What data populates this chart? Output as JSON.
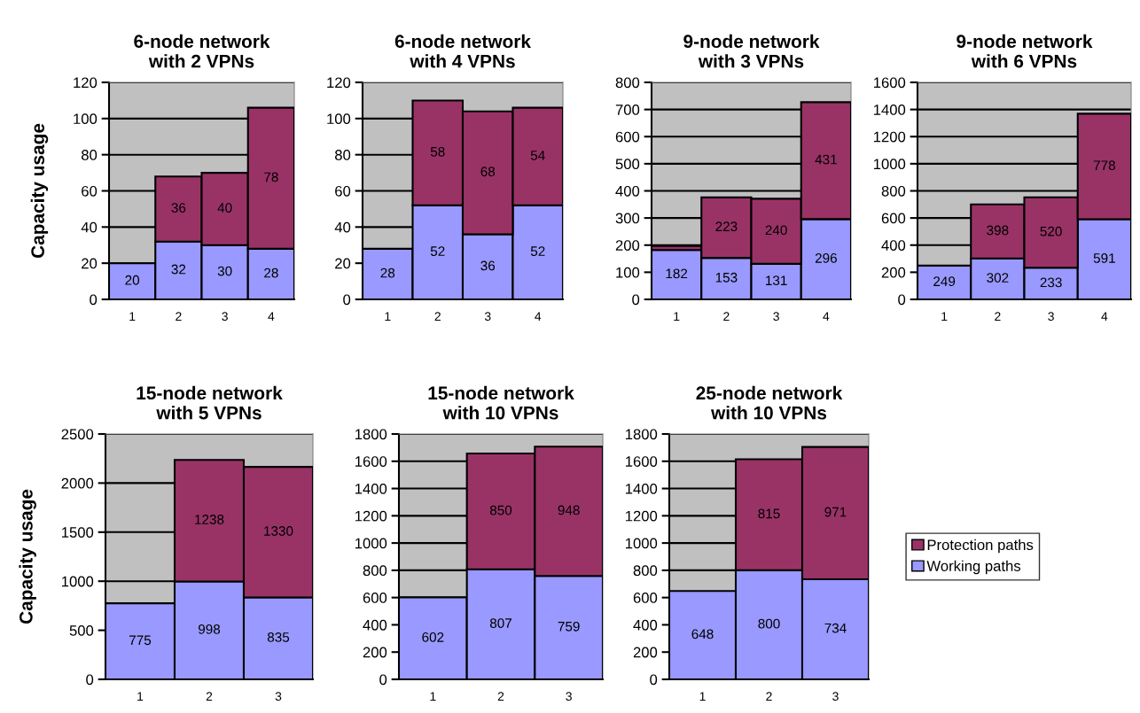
{
  "chart_data": [
    {
      "type": "bar",
      "stacked": true,
      "title": "6-node network\nwith 2 VPNs",
      "ylabel": "Capacity usage",
      "categories": [
        "1",
        "2",
        "3",
        "4"
      ],
      "ylim": [
        0,
        120
      ],
      "yticks": [
        0,
        20,
        40,
        60,
        80,
        100,
        120
      ],
      "grid": "y",
      "legend": false,
      "series": [
        {
          "color": "#9999ff",
          "values": [
            20,
            32,
            30,
            28
          ],
          "value_labels": [
            "20",
            "32",
            "30",
            "28"
          ]
        },
        {
          "color": "#993366",
          "values": [
            null,
            36,
            40,
            78
          ],
          "value_labels": [
            null,
            "36",
            "40",
            "78"
          ]
        }
      ]
    },
    {
      "type": "bar",
      "stacked": true,
      "title": "6-node network\nwith 4 VPNs",
      "categories": [
        "1",
        "2",
        "3",
        "4"
      ],
      "ylim": [
        0,
        120
      ],
      "yticks": [
        0,
        20,
        40,
        60,
        80,
        100,
        120
      ],
      "grid": "y",
      "legend": false,
      "series": [
        {
          "color": "#9999ff",
          "values": [
            28,
            52,
            36,
            52
          ],
          "value_labels": [
            "28",
            "52",
            "36",
            "52"
          ]
        },
        {
          "color": "#993366",
          "values": [
            null,
            58,
            68,
            54
          ],
          "value_labels": [
            null,
            "58",
            "68",
            "54"
          ]
        }
      ]
    },
    {
      "type": "bar",
      "stacked": true,
      "title": "9-node network\nwith 3 VPNs",
      "categories": [
        "1",
        "2",
        "3",
        "4"
      ],
      "ylim": [
        0,
        800
      ],
      "yticks": [
        0,
        100,
        200,
        300,
        400,
        500,
        600,
        700,
        800
      ],
      "grid": "y",
      "legend": false,
      "series": [
        {
          "color": "#9999ff",
          "values": [
            182,
            153,
            131,
            296
          ],
          "value_labels": [
            "182",
            "153",
            "131",
            "296"
          ]
        },
        {
          "color": "#993366",
          "values": [
            15,
            223,
            240,
            431
          ],
          "value_labels": [
            null,
            "223",
            "240",
            "431"
          ]
        }
      ]
    },
    {
      "type": "bar",
      "stacked": true,
      "title": "9-node network\nwith 6 VPNs",
      "categories": [
        "1",
        "2",
        "3",
        "4"
      ],
      "ylim": [
        0,
        1600
      ],
      "yticks": [
        0,
        200,
        400,
        600,
        800,
        1000,
        1200,
        1400,
        1600
      ],
      "grid": "y",
      "legend": false,
      "series": [
        {
          "color": "#9999ff",
          "values": [
            249,
            302,
            233,
            591
          ],
          "value_labels": [
            "249",
            "302",
            "233",
            "591"
          ]
        },
        {
          "color": "#993366",
          "values": [
            null,
            398,
            520,
            778
          ],
          "value_labels": [
            null,
            "398",
            "520",
            "778"
          ]
        }
      ]
    },
    {
      "type": "bar",
      "stacked": true,
      "title": "15-node network\nwith 5 VPNs",
      "ylabel": "Capacity usage",
      "categories": [
        "1",
        "2",
        "3"
      ],
      "ylim": [
        0,
        2500
      ],
      "yticks": [
        0,
        500,
        1000,
        1500,
        2000,
        2500
      ],
      "grid": "y",
      "legend": false,
      "series": [
        {
          "color": "#9999ff",
          "values": [
            775,
            998,
            835
          ],
          "value_labels": [
            "775",
            "998",
            "835"
          ]
        },
        {
          "color": "#993366",
          "values": [
            null,
            1238,
            1330
          ],
          "value_labels": [
            null,
            "1238",
            "1330"
          ]
        }
      ]
    },
    {
      "type": "bar",
      "stacked": true,
      "title": "15-node network\nwith 10 VPNs",
      "categories": [
        "1",
        "2",
        "3"
      ],
      "ylim": [
        0,
        1800
      ],
      "yticks": [
        0,
        200,
        400,
        600,
        800,
        1000,
        1200,
        1400,
        1600,
        1800
      ],
      "grid": "y",
      "legend": false,
      "series": [
        {
          "color": "#9999ff",
          "values": [
            602,
            807,
            759
          ],
          "value_labels": [
            "602",
            "807",
            "759"
          ]
        },
        {
          "color": "#993366",
          "values": [
            null,
            850,
            948
          ],
          "value_labels": [
            null,
            "850",
            "948"
          ]
        }
      ]
    },
    {
      "type": "bar",
      "stacked": true,
      "title": "25-node network\nwith 10 VPNs",
      "categories": [
        "1",
        "2",
        "3"
      ],
      "ylim": [
        0,
        1800
      ],
      "yticks": [
        0,
        200,
        400,
        600,
        800,
        1000,
        1200,
        1400,
        1600,
        1800
      ],
      "grid": "y",
      "legend": "right",
      "series": [
        {
          "name": "Working paths",
          "color": "#9999ff",
          "values": [
            648,
            800,
            734
          ],
          "value_labels": [
            "648",
            "800",
            "734"
          ]
        },
        {
          "name": "Protection paths",
          "color": "#993366",
          "values": [
            null,
            815,
            971
          ],
          "value_labels": [
            null,
            "815",
            "971"
          ]
        }
      ]
    }
  ]
}
